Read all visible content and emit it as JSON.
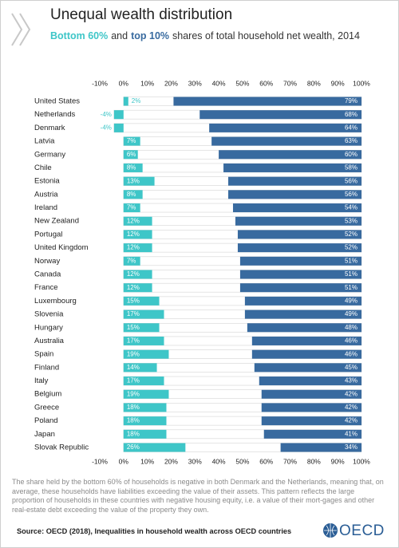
{
  "chart_data": {
    "type": "bar",
    "orientation": "horizontal",
    "title": "Unequal wealth distribution",
    "subtitle_connector": "and",
    "subtitle": "shares of total household net wealth, 2014",
    "categories": [
      "United States",
      "Netherlands",
      "Denmark",
      "Latvia",
      "Germany",
      "Chile",
      "Estonia",
      "Austria",
      "Ireland",
      "New Zealand",
      "Portugal",
      "United Kingdom",
      "Norway",
      "Canada",
      "France",
      "Luxembourg",
      "Slovenia",
      "Hungary",
      "Australia",
      "Spain",
      "Finland",
      "Italy",
      "Belgium",
      "Greece",
      "Poland",
      "Japan",
      "Slovak Republic"
    ],
    "series": [
      {
        "name": "Bottom 60%",
        "color": "#3ec6c8",
        "values": [
          2,
          -4,
          -4,
          7,
          6,
          8,
          13,
          8,
          7,
          12,
          12,
          12,
          7,
          12,
          12,
          15,
          17,
          15,
          17,
          19,
          14,
          17,
          19,
          18,
          18,
          18,
          26
        ],
        "value_labels": [
          "2%",
          "-4%",
          "-4%",
          "7%",
          "6%",
          "8%",
          "13%",
          "8%",
          "7%",
          "12%",
          "12%",
          "12%",
          "7%",
          "12%",
          "12%",
          "15%",
          "17%",
          "15%",
          "17%",
          "19%",
          "14%",
          "17%",
          "19%",
          "18%",
          "18%",
          "18%",
          "26%"
        ]
      },
      {
        "name": "top 10%",
        "color": "#386a9f",
        "values": [
          79,
          68,
          64,
          63,
          60,
          58,
          56,
          56,
          54,
          53,
          52,
          52,
          51,
          51,
          51,
          49,
          49,
          48,
          46,
          46,
          45,
          43,
          42,
          42,
          42,
          41,
          34
        ],
        "value_labels": [
          "79%",
          "68%",
          "64%",
          "63%",
          "60%",
          "58%",
          "56%",
          "56%",
          "54%",
          "53%",
          "52%",
          "52%",
          "51%",
          "51%",
          "51%",
          "49%",
          "49%",
          "48%",
          "46%",
          "46%",
          "45%",
          "43%",
          "42%",
          "42%",
          "42%",
          "41%",
          "34%"
        ]
      }
    ],
    "xlim": [
      -10,
      100
    ],
    "xticks": [
      {
        "value": -10,
        "label": "-10%"
      },
      {
        "value": 0,
        "label": "0%"
      },
      {
        "value": 10,
        "label": "10%"
      },
      {
        "value": 20,
        "label": "20%"
      },
      {
        "value": 30,
        "label": "30%"
      },
      {
        "value": 40,
        "label": "40%"
      },
      {
        "value": 50,
        "label": "50%"
      },
      {
        "value": 60,
        "label": "60%"
      },
      {
        "value": 70,
        "label": "70%"
      },
      {
        "value": 80,
        "label": "80%"
      },
      {
        "value": 90,
        "label": "90%"
      },
      {
        "value": 100,
        "label": "100%"
      }
    ],
    "grid": false,
    "note": "The share held by the bottom 60% of households is negative in both Denmark and the Netherlands, meaning that, on average, these households have liabilities exceeding the value of their assets. This pattern reflects the large proportion of households in these countries with negative housing equity, i.e. a value of their mort-gages and other real-estate debt exceeding the value of the property they own.",
    "source": "Source: OECD (2018), Inequalities in household wealth across OECD countries",
    "logo": "OECD"
  }
}
